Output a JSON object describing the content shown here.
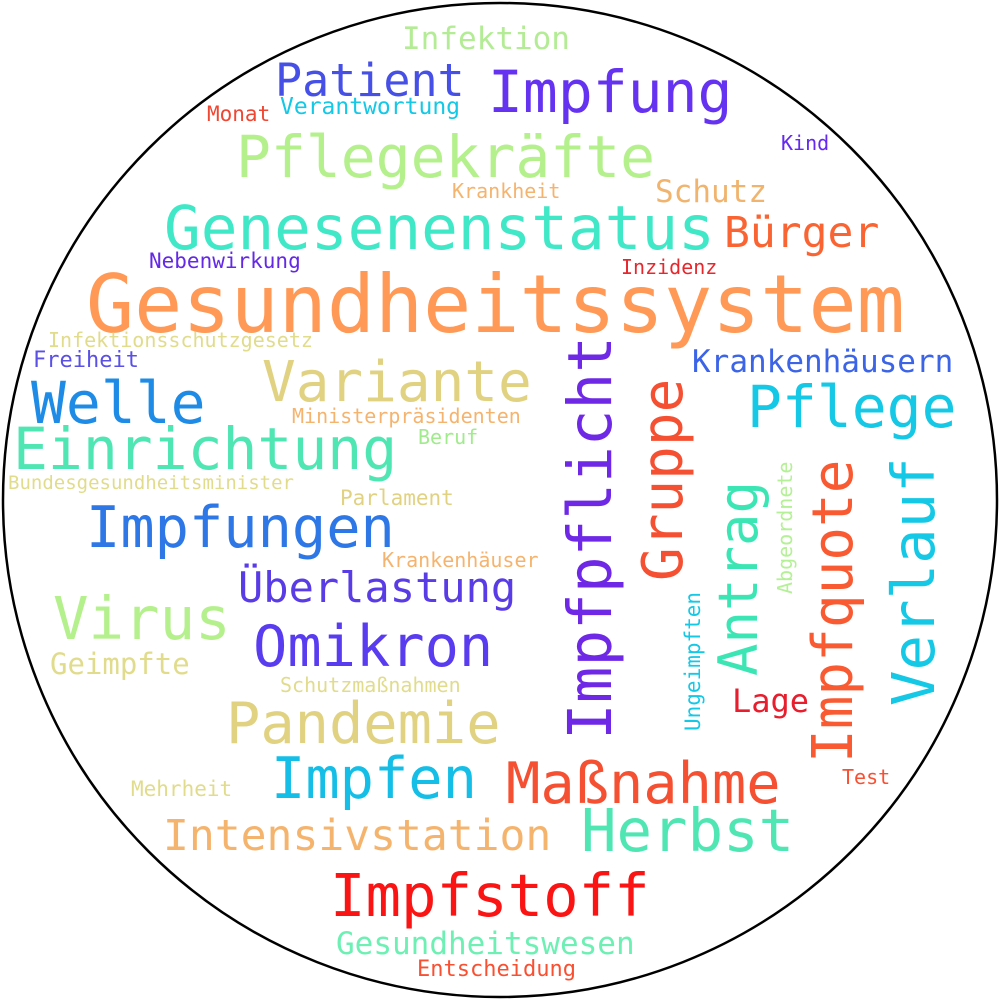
{
  "words": [
    {
      "text": "Gesundheitssystem",
      "color": "#FF9955",
      "weight": 100,
      "vertical": false
    },
    {
      "text": "Genesenenstatus",
      "color": "#40E8C8",
      "weight": 66,
      "vertical": false
    },
    {
      "text": "Pflegekräfte",
      "color": "#B4F08C",
      "weight": 63,
      "vertical": false
    },
    {
      "text": "Impfung",
      "color": "#6432F0",
      "weight": 62,
      "vertical": false
    },
    {
      "text": "Impfpflicht",
      "color": "#6E28E6",
      "weight": 66,
      "vertical": true
    },
    {
      "text": "Patient",
      "color": "#4650E6",
      "weight": 48,
      "vertical": false
    },
    {
      "text": "Infektion",
      "color": "#B4EC96",
      "weight": 34,
      "vertical": false
    },
    {
      "text": "Verantwortung",
      "color": "#14C8E6",
      "weight": 26,
      "vertical": false
    },
    {
      "text": "Monat",
      "color": "#F04632",
      "weight": 25,
      "vertical": false
    },
    {
      "text": "Kind",
      "color": "#6428F0",
      "weight": 24,
      "vertical": false
    },
    {
      "text": "Krankheit",
      "color": "#F5B46E",
      "weight": 24,
      "vertical": false
    },
    {
      "text": "Schutz",
      "color": "#F0B46E",
      "weight": 34,
      "vertical": false
    },
    {
      "text": "Bürger",
      "color": "#FA6432",
      "weight": 46,
      "vertical": false
    },
    {
      "text": "Nebenwirkung",
      "color": "#6428E6",
      "weight": 25,
      "vertical": false
    },
    {
      "text": "Inzidenz",
      "color": "#E6282D",
      "weight": 24,
      "vertical": false
    },
    {
      "text": "Infektionsschutzgesetz",
      "color": "#E1DC8C",
      "weight": 24,
      "vertical": false
    },
    {
      "text": "Freiheit",
      "color": "#5A50E6",
      "weight": 25,
      "vertical": false
    },
    {
      "text": "Krankenhäusern",
      "color": "#3C64E6",
      "weight": 34,
      "vertical": false
    },
    {
      "text": "Welle",
      "color": "#1E8CE6",
      "weight": 55,
      "vertical": false
    },
    {
      "text": "Variante",
      "color": "#E1D282",
      "weight": 54,
      "vertical": false
    },
    {
      "text": "Pflege",
      "color": "#14C8E6",
      "weight": 57,
      "vertical": false
    },
    {
      "text": "Ministerpräsidenten",
      "color": "#F5B46E",
      "weight": 24,
      "vertical": false
    },
    {
      "text": "Einrichtung",
      "color": "#50E6B4",
      "weight": 56,
      "vertical": false
    },
    {
      "text": "Beruf",
      "color": "#A0EB8C",
      "weight": 24,
      "vertical": false
    },
    {
      "text": "Bundesgesundheitsminister",
      "color": "#E1DC8C",
      "weight": 24,
      "vertical": false
    },
    {
      "text": "Parlament",
      "color": "#E1D282",
      "weight": 24,
      "vertical": false
    },
    {
      "text": "Gruppe",
      "color": "#F55032",
      "weight": 56,
      "vertical": true
    },
    {
      "text": "Antrag",
      "color": "#3CE6B4",
      "weight": 52,
      "vertical": true
    },
    {
      "text": "Abgeordnete",
      "color": "#B4F096",
      "weight": 24,
      "vertical": true
    },
    {
      "text": "Impfquote",
      "color": "#FA5A32",
      "weight": 56,
      "vertical": true
    },
    {
      "text": "Verlauf",
      "color": "#14C8E6",
      "weight": 56,
      "vertical": true
    },
    {
      "text": "Impfungen",
      "color": "#2D78E6",
      "weight": 56,
      "vertical": false
    },
    {
      "text": "Krankenhäuser",
      "color": "#F5B46E",
      "weight": 24,
      "vertical": false
    },
    {
      "text": "Überlastung",
      "color": "#5A3CE6",
      "weight": 42,
      "vertical": false
    },
    {
      "text": "Virus",
      "color": "#B4F08C",
      "weight": 58,
      "vertical": false
    },
    {
      "text": "Omikron",
      "color": "#5A3CF0",
      "weight": 58,
      "vertical": false
    },
    {
      "text": "Geimpfte",
      "color": "#E1DC8C",
      "weight": 29,
      "vertical": false
    },
    {
      "text": "Ungeimpften",
      "color": "#14C8E6",
      "weight": 24,
      "vertical": true
    },
    {
      "text": "Schutzmaßnahmen",
      "color": "#E1DC8C",
      "weight": 24,
      "vertical": false
    },
    {
      "text": "Lage",
      "color": "#E61E2D",
      "weight": 33,
      "vertical": false
    },
    {
      "text": "Pandemie",
      "color": "#E1D282",
      "weight": 53,
      "vertical": false
    },
    {
      "text": "Impfen",
      "color": "#14BEE6",
      "weight": 54,
      "vertical": false
    },
    {
      "text": "Maßnahme",
      "color": "#F55032",
      "weight": 55,
      "vertical": false
    },
    {
      "text": "Test",
      "color": "#FA5032",
      "weight": 24,
      "vertical": false
    },
    {
      "text": "Mehrheit",
      "color": "#E1DC8C",
      "weight": 24,
      "vertical": false
    },
    {
      "text": "Intensivstation",
      "color": "#F5B46E",
      "weight": 44,
      "vertical": false
    },
    {
      "text": "Herbst",
      "color": "#50E6B4",
      "weight": 54,
      "vertical": false
    },
    {
      "text": "Impfstoff",
      "color": "#FA1414",
      "weight": 55,
      "vertical": false
    },
    {
      "text": "Gesundheitswesen",
      "color": "#6EF0B4",
      "weight": 32,
      "vertical": false
    },
    {
      "text": "Entscheidung",
      "color": "#FA5032",
      "weight": 25,
      "vertical": false
    }
  ],
  "outline_color": "#000000"
}
